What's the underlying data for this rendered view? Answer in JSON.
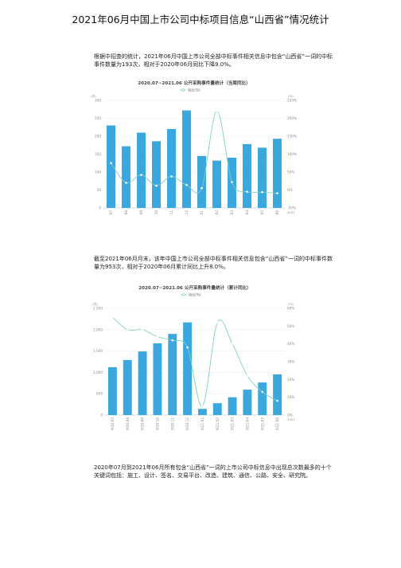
{
  "title": "2021年06月中国上市公司中标项目信息“山西省”情况统计",
  "paragraphs": {
    "p1": "根据中招查的统计，2021年06月中国上市公司全部中标事件相关信息中包含“山西省”一词的中标事件数量为193次，相对于2020年06月同比下降9.0%。",
    "p2": "截至2021年06月月末，该年中国上市公司全部中标事件相关信息包含“山西省”一词的中标事件数量为953次，相对于2020年06月累计同比上升8.0%。",
    "p3": "2020年07月到2021年06月所有包含“山西省”一词的上市公司中标信息中出现总次数最多的十个关键词包括：施工、设计、签名、交易平台、改造、建筑、通信、公路、安全、研究院。"
  },
  "chart_data": [
    {
      "type": "bar",
      "title": "2020.07~2021.06 公开采购事件量统计（当周同比）",
      "legend": "同比(%)",
      "left_unit": "(次)",
      "right_unit": "(%)",
      "right_axis_label": "2021",
      "categories": [
        "2020-07",
        "2020-08",
        "2020-09",
        "2020-10",
        "2020-11",
        "2020-12",
        "2021-01",
        "2021-02",
        "2021-03",
        "2021-04",
        "2021-05",
        "2021-06"
      ],
      "values": [
        230,
        172,
        210,
        186,
        220,
        272,
        145,
        132,
        140,
        178,
        168,
        193
      ],
      "line_values": [
        75,
        20,
        42,
        12,
        38,
        14,
        5,
        220,
        22,
        -5,
        -6,
        -9
      ],
      "ylim_left": [
        0,
        300
      ],
      "ylim_right": [
        -50,
        250
      ],
      "yticks_left": [
        "0",
        "50",
        "100",
        "150",
        "200",
        "250",
        "300"
      ],
      "yticks_right": [
        "-50%",
        "0%",
        "50%",
        "100%",
        "150%",
        "200%",
        "250%"
      ],
      "bar_color": "#3aa8de",
      "line_color": "#7ecfc4"
    },
    {
      "type": "bar",
      "title": "2020.07~2021.06 公开采购事件量统计（累计同比）",
      "legend": "同比(%)",
      "left_unit": "(次)",
      "right_unit": "(%)",
      "right_axis_label": "2021",
      "categories": [
        "2020-07",
        "2020-08",
        "2020-09",
        "2020-10",
        "2020-11",
        "2020-12",
        "2021-01",
        "2021-02",
        "2021-03",
        "2021-04",
        "2021-05",
        "2021-06"
      ],
      "values": [
        1120,
        1290,
        1490,
        1680,
        1900,
        2170,
        145,
        277,
        417,
        595,
        763,
        953
      ],
      "line_values": [
        55,
        48,
        48,
        44,
        42,
        38,
        5,
        52,
        40,
        22,
        13,
        8
      ],
      "ylim_left": [
        0,
        2500
      ],
      "ylim_right": [
        0,
        60
      ],
      "yticks_left": [
        "0",
        "500",
        "1,000",
        "1,500",
        "2,000",
        "2,500"
      ],
      "yticks_right": [
        "0%",
        "10%",
        "20%",
        "30%",
        "40%",
        "50%",
        "60%"
      ],
      "bar_color": "#3aa8de",
      "line_color": "#7ecfc4"
    }
  ]
}
